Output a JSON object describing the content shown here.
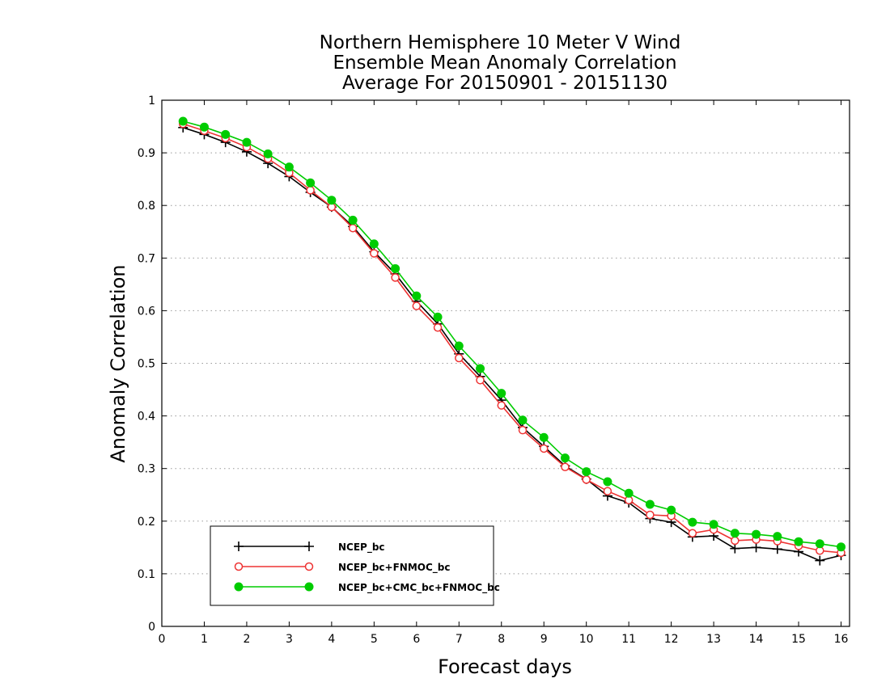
{
  "title_lines": [
    "Northern Hemisphere 10 Meter V Wind",
    "Ensemble Mean Anomaly Correlation",
    "Average For 20150901 - 20151130"
  ],
  "chart_data": {
    "type": "line",
    "title": "Northern Hemisphere 10 Meter V Wind Ensemble Mean Anomaly Correlation Average For 20150901 - 20151130",
    "xlabel": "Forecast days",
    "ylabel": "Anomaly Correlation",
    "xlim": [
      0,
      16.2
    ],
    "ylim": [
      0,
      1
    ],
    "xticks": [
      0,
      1,
      2,
      3,
      4,
      5,
      6,
      7,
      8,
      9,
      10,
      11,
      12,
      13,
      14,
      15,
      16
    ],
    "yticks": [
      0,
      0.1,
      0.2,
      0.3,
      0.4,
      0.5,
      0.6,
      0.7,
      0.8,
      0.9,
      1
    ],
    "ytick_labels": [
      "0",
      "0.1",
      "0.2",
      "0.3",
      "0.4",
      "0.5",
      "0.6",
      "0.7",
      "0.8",
      "0.9",
      "1"
    ],
    "grid": "horizontal dotted",
    "legend_position": "bottom-left",
    "x": [
      0.5,
      1,
      1.5,
      2,
      2.5,
      3,
      3.5,
      4,
      4.5,
      5,
      5.5,
      6,
      6.5,
      7,
      7.5,
      8,
      8.5,
      9,
      9.5,
      10,
      10.5,
      11,
      11.5,
      12,
      12.5,
      13,
      13.5,
      14,
      14.5,
      15,
      15.5,
      16
    ],
    "series": [
      {
        "name": "NCEP_bc",
        "color": "#000000",
        "marker": "plus",
        "values": [
          0.948,
          0.935,
          0.92,
          0.902,
          0.88,
          0.855,
          0.825,
          0.797,
          0.76,
          0.712,
          0.67,
          0.618,
          0.575,
          0.518,
          0.475,
          0.43,
          0.378,
          0.342,
          0.305,
          0.28,
          0.248,
          0.235,
          0.205,
          0.198,
          0.17,
          0.172,
          0.148,
          0.15,
          0.147,
          0.142,
          0.125,
          0.135
        ]
      },
      {
        "name": "NCEP_bc+FNMOC_bc",
        "color": "#ee3333",
        "marker": "open-circle",
        "values": [
          0.955,
          0.942,
          0.928,
          0.911,
          0.889,
          0.862,
          0.829,
          0.797,
          0.757,
          0.709,
          0.663,
          0.609,
          0.568,
          0.51,
          0.468,
          0.42,
          0.373,
          0.338,
          0.303,
          0.279,
          0.257,
          0.24,
          0.212,
          0.21,
          0.177,
          0.184,
          0.163,
          0.165,
          0.162,
          0.153,
          0.144,
          0.14
        ]
      },
      {
        "name": "NCEP_bc+CMC_bc+FNMOC_bc",
        "color": "#00cc00",
        "marker": "filled-circle",
        "values": [
          0.96,
          0.949,
          0.935,
          0.92,
          0.898,
          0.873,
          0.843,
          0.81,
          0.772,
          0.727,
          0.68,
          0.628,
          0.588,
          0.533,
          0.49,
          0.443,
          0.392,
          0.359,
          0.32,
          0.294,
          0.275,
          0.253,
          0.232,
          0.221,
          0.198,
          0.194,
          0.177,
          0.175,
          0.171,
          0.161,
          0.157,
          0.151
        ]
      }
    ]
  }
}
